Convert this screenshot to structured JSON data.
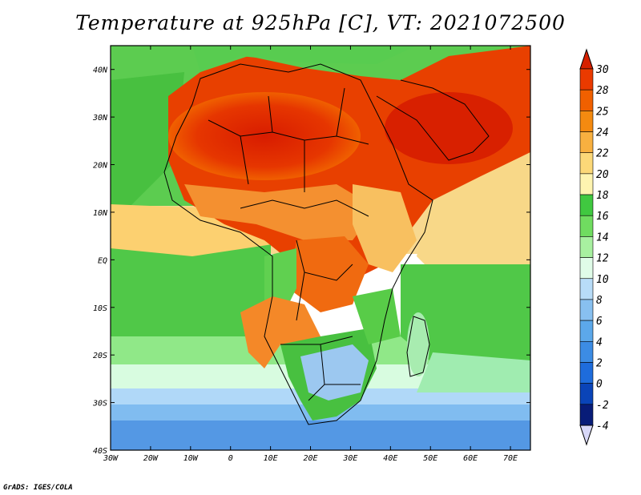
{
  "title": "Temperature at 925hPa [C], VT: 2021072500",
  "credit": "GrADS: IGES/COLA",
  "map": {
    "region": "Africa",
    "projection": "lat-lon",
    "lon_range": [
      -30,
      75
    ],
    "lat_range": [
      -40,
      45
    ],
    "lat_ticks": [
      "40N",
      "30N",
      "20N",
      "10N",
      "EQ",
      "10S",
      "20S",
      "30S",
      "40S"
    ],
    "lon_ticks": [
      "30W",
      "20W",
      "10W",
      "0",
      "10E",
      "20E",
      "30E",
      "40E",
      "50E",
      "60E",
      "70E"
    ]
  },
  "colorbar": {
    "levels": [
      "30",
      "28",
      "25",
      "24",
      "22",
      "20",
      "18",
      "16",
      "14",
      "12",
      "10",
      "8",
      "6",
      "4",
      "2",
      "0",
      "-2",
      "-4"
    ],
    "colors": [
      "#d62000",
      "#ea3a00",
      "#f06000",
      "#f48a10",
      "#f8b040",
      "#fcd878",
      "#fef4b0",
      "#40c840",
      "#70dc60",
      "#a8f0a0",
      "#e0fce8",
      "#b8dcf8",
      "#88c0f0",
      "#5ca8ea",
      "#3c8ce4",
      "#1e6cdc",
      "#0a44b8",
      "#081c78",
      "#d8d8f8"
    ]
  }
}
